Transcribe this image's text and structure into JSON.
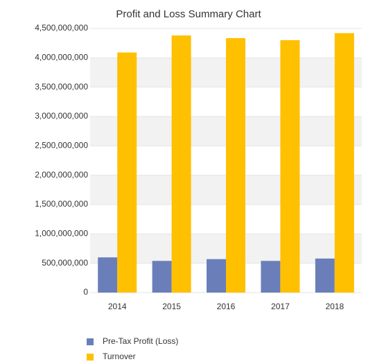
{
  "chart_data": {
    "type": "bar",
    "title": "Profit and Loss Summary Chart",
    "categories": [
      "2014",
      "2015",
      "2016",
      "2017",
      "2018"
    ],
    "series": [
      {
        "name": "Pre-Tax Profit (Loss)",
        "color": "#6a7fba",
        "values": [
          600000000,
          540000000,
          570000000,
          540000000,
          580000000
        ]
      },
      {
        "name": "Turnover",
        "color": "#ffc000",
        "values": [
          4090000000,
          4380000000,
          4335000000,
          4300000000,
          4420000000
        ]
      }
    ],
    "ylim": [
      0,
      4500000000
    ],
    "yticks": [
      0,
      {
        "value": 500000000,
        "label": "500,000,000"
      },
      {
        "value": 1000000000,
        "label": "1,000,000,000"
      },
      {
        "value": 1500000000,
        "label": "1,500,000,000"
      },
      {
        "value": 2000000000,
        "label": "2,000,000,000"
      },
      {
        "value": 2500000000,
        "label": "2,500,000,000"
      },
      {
        "value": 3000000000,
        "label": "3,000,000,000"
      },
      {
        "value": 3500000000,
        "label": "3,500,000,000"
      },
      {
        "value": 4000000000,
        "label": "4,000,000,000"
      },
      {
        "value": 4500000000,
        "label": "4,500,000,000"
      }
    ],
    "grid": true
  }
}
